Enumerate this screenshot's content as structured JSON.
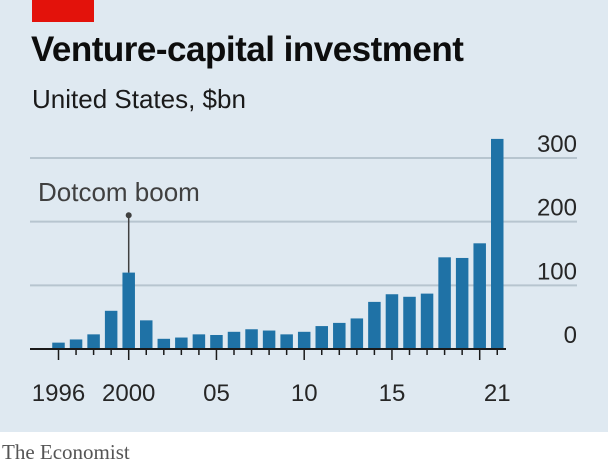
{
  "header": {
    "title": "Venture-capital investment",
    "subtitle": "United States, $bn"
  },
  "footer": {
    "source": "The Economist"
  },
  "colors": {
    "panel": "#dfe9f1",
    "bar": "#1f72a6",
    "red_tag": "#e3120b",
    "grid": "#b7c5cf",
    "axis": "#1a1a1a",
    "text": "#262626",
    "annotation": "#404040"
  },
  "chart_data": {
    "type": "bar",
    "title": "Venture-capital investment",
    "subtitle": "United States, $bn",
    "xlabel": "",
    "ylabel": "",
    "ylim": [
      0,
      330
    ],
    "y_ticks": [
      0,
      100,
      200,
      300
    ],
    "y_tick_labels": [
      "0",
      "100",
      "200",
      "300"
    ],
    "y_axis_position": "right",
    "grid": true,
    "categories": [
      1996,
      1997,
      1998,
      1999,
      2000,
      2001,
      2002,
      2003,
      2004,
      2005,
      2006,
      2007,
      2008,
      2009,
      2010,
      2011,
      2012,
      2013,
      2014,
      2015,
      2016,
      2017,
      2018,
      2019,
      2020,
      2021
    ],
    "values": [
      10,
      15,
      23,
      60,
      120,
      45,
      16,
      18,
      23,
      22,
      27,
      31,
      29,
      23,
      27,
      36,
      41,
      48,
      74,
      86,
      82,
      87,
      144,
      143,
      166,
      330
    ],
    "x_tick_labels": [
      {
        "year": 1996,
        "label": "1996"
      },
      {
        "year": 2000,
        "label": "2000"
      },
      {
        "year": 2005,
        "label": "05"
      },
      {
        "year": 2010,
        "label": "10"
      },
      {
        "year": 2015,
        "label": "15"
      },
      {
        "year": 2021,
        "label": "21"
      }
    ],
    "x_major_ticks": [
      1996,
      2000,
      2005,
      2010,
      2015,
      2020
    ],
    "annotations": [
      {
        "text": "Dotcom boom",
        "year": 2000,
        "value": 210
      }
    ]
  }
}
